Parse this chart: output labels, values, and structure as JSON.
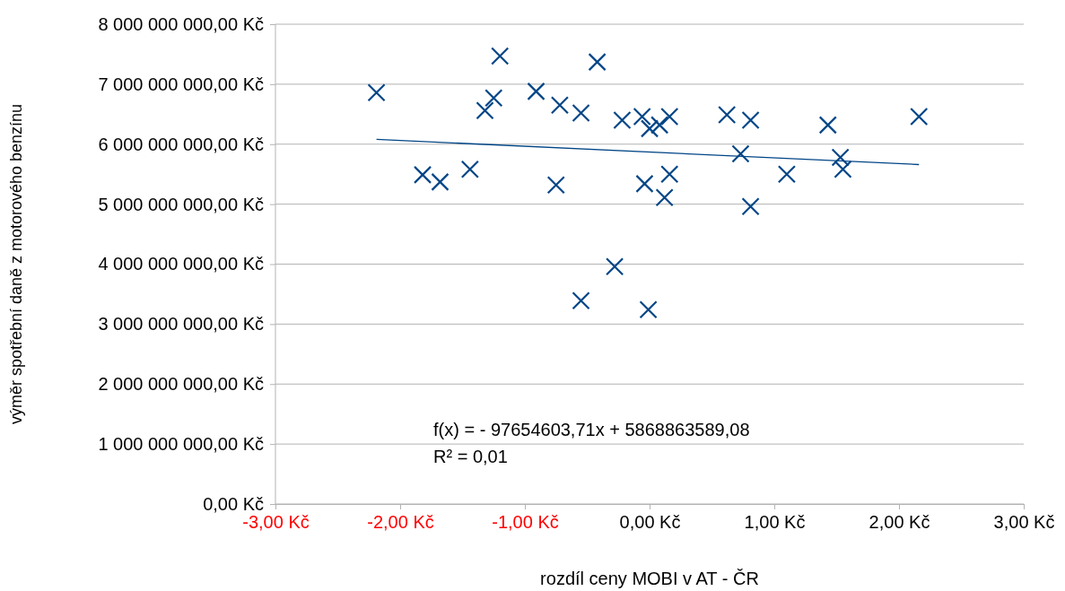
{
  "chart_data": {
    "type": "scatter",
    "xlabel": "rozdíl ceny MOBI v AT - ČR",
    "ylabel": "výměr spotřební daně z motorového benzínu",
    "xlim": [
      -3,
      3
    ],
    "xticks": [
      {
        "value": -3,
        "label": "-3,00 Kč"
      },
      {
        "value": -2,
        "label": "-2,00 Kč"
      },
      {
        "value": -1,
        "label": "-1,00 Kč"
      },
      {
        "value": 0,
        "label": "0,00 Kč"
      },
      {
        "value": 1,
        "label": "1,00 Kč"
      },
      {
        "value": 2,
        "label": "2,00 Kč"
      },
      {
        "value": 3,
        "label": "3,00 Kč"
      }
    ],
    "ylim": [
      0,
      8000000000
    ],
    "yticks": [
      {
        "value": 0,
        "label": "0,00 Kč"
      },
      {
        "value": 1000000000,
        "label": "1 000 000 000,00 Kč"
      },
      {
        "value": 2000000000,
        "label": "2 000 000 000,00 Kč"
      },
      {
        "value": 3000000000,
        "label": "3 000 000 000,00 Kč"
      },
      {
        "value": 4000000000,
        "label": "4 000 000 000,00 Kč"
      },
      {
        "value": 5000000000,
        "label": "5 000 000 000,00 Kč"
      },
      {
        "value": 6000000000,
        "label": "6 000 000 000,00 Kč"
      },
      {
        "value": 7000000000,
        "label": "7 000 000 000,00 Kč"
      },
      {
        "value": 8000000000,
        "label": "8 000 000 000,00 Kč"
      }
    ],
    "grid": "y",
    "annotations": [
      "f(x) =  - 97654603,71x + 5868863589,08",
      "R² = 0,01"
    ],
    "series": [
      {
        "color": "#004586",
        "marker": "cross",
        "x": [
          -2.19,
          -1.82,
          -1.68,
          -1.44,
          -1.32,
          -1.25,
          -1.2,
          -0.91,
          -0.75,
          -0.72,
          -0.55,
          -0.55,
          -0.42,
          -0.28,
          -0.22,
          -0.06,
          -0.04,
          -0.01,
          0,
          0.08,
          0.12,
          0.16,
          0.16,
          0.62,
          0.73,
          0.81,
          0.81,
          1.1,
          1.43,
          1.53,
          1.55,
          2.16
        ],
        "values": [
          6860000000,
          5490000000,
          5370000000,
          5580000000,
          6560000000,
          6770000000,
          7470000000,
          6880000000,
          5320000000,
          6650000000,
          6520000000,
          3390000000,
          7370000000,
          3960000000,
          6400000000,
          6460000000,
          5340000000,
          3240000000,
          6260000000,
          6320000000,
          5110000000,
          6460000000,
          5500000000,
          6490000000,
          5840000000,
          6400000000,
          4960000000,
          5500000000,
          6320000000,
          5780000000,
          5580000000,
          6460000000
        ]
      },
      {
        "type": "line",
        "color": "#004586",
        "marker": "none",
        "x": [
          -2.19,
          2.16
        ],
        "values": [
          6080000000,
          5660000000
        ]
      }
    ]
  }
}
